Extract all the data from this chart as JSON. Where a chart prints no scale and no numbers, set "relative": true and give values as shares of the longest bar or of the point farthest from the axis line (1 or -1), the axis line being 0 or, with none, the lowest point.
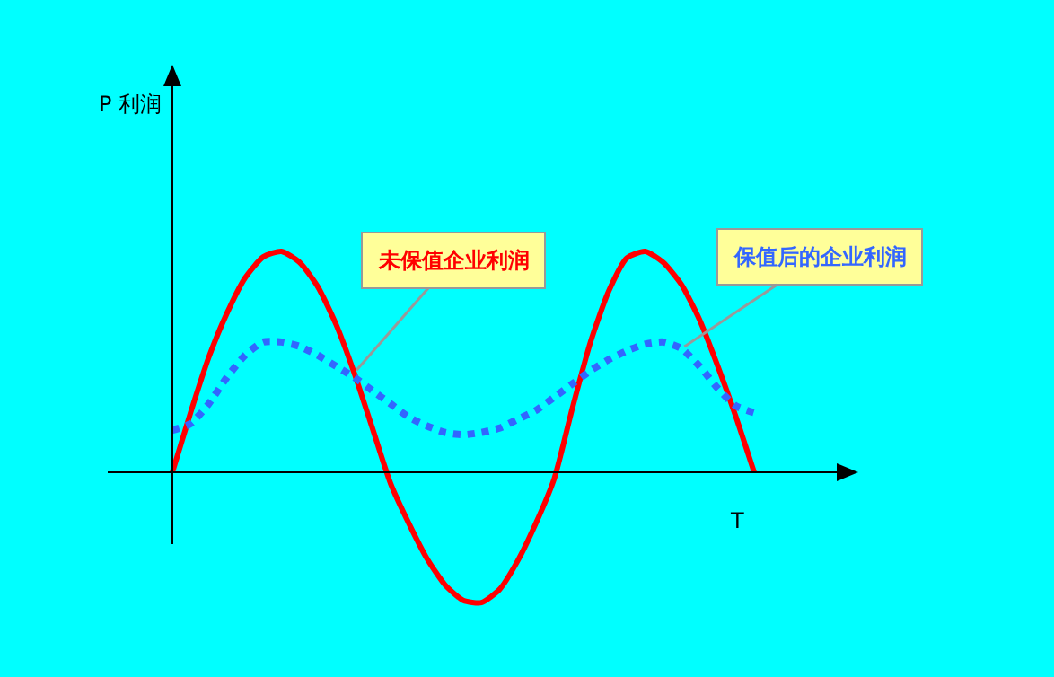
{
  "chart_data": {
    "type": "line",
    "relative": true,
    "xlabel": "T",
    "categories": [
      null,
      null,
      null,
      null,
      null,
      null,
      null,
      null,
      null,
      null,
      null,
      null,
      null,
      null,
      null,
      null,
      null,
      null,
      null,
      null,
      null,
      null,
      null,
      null,
      null,
      null,
      null,
      null,
      null,
      null,
      null,
      null,
      null
    ],
    "series": [
      {
        "color": "#ff0000",
        "line_style": "solid",
        "values": [
          0,
          0.27,
          0.52,
          0.72,
          0.88,
          0.975,
          1.0,
          0.95,
          0.84,
          0.67,
          0.45,
          0.2,
          -0.05,
          -0.23,
          -0.39,
          -0.51,
          -0.58,
          -0.59,
          -0.53,
          -0.4,
          -0.23,
          -0.03,
          0.29,
          0.59,
          0.82,
          0.97,
          1.0,
          0.95,
          0.85,
          0.69,
          0.48,
          0.25,
          0
        ]
      },
      {
        "color": "#3366ff",
        "line_style": "dotted",
        "values": [
          0.19,
          0.22,
          0.31,
          0.43,
          0.53,
          0.59,
          0.59,
          0.57,
          0.53,
          0.48,
          0.43,
          0.37,
          0.31,
          0.25,
          0.21,
          0.18,
          0.17,
          0.18,
          0.2,
          0.24,
          0.28,
          0.34,
          0.4,
          0.46,
          0.51,
          0.55,
          0.58,
          0.59,
          0.56,
          0.48,
          0.38,
          0.3,
          0.27
        ]
      }
    ],
    "annotations": [
      "未保值企业利润",
      "保值后的企业利润",
      "P 利润"
    ]
  }
}
